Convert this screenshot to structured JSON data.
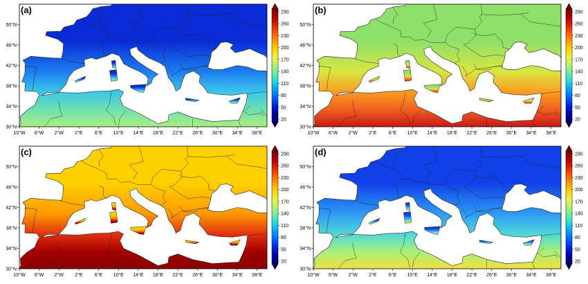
{
  "figure": {
    "x_ticks": [
      "10°W",
      "6°W",
      "2°W",
      "2°E",
      "6°E",
      "10°E",
      "14°E",
      "18°E",
      "22°E",
      "26°E",
      "30°E",
      "34°E",
      "38°E"
    ],
    "y_ticks": [
      "50°N",
      "46°N",
      "42°N",
      "38°N",
      "34°N",
      "30°N"
    ],
    "colorbar_ticks": [
      "290",
      "260",
      "230",
      "200",
      "170",
      "140",
      "110",
      "80",
      "50",
      "20"
    ],
    "colorbar_colors": [
      "#7a0000",
      "#b00000",
      "#e02000",
      "#ff5a00",
      "#ff9a00",
      "#ffd400",
      "#f0f040",
      "#b0f070",
      "#60f0a0",
      "#20d8e0",
      "#00a0ff",
      "#0060ff",
      "#0020e0",
      "#0000a0",
      "#00006a"
    ],
    "land_color": "#ffffff",
    "border_color": "#202020"
  },
  "panels": [
    {
      "label": "(a)",
      "field": "low",
      "colors": {
        "north": "#0a2ad6",
        "central": "#1d7cf0",
        "south_land": "#3cc8e8",
        "africa": "#70e0b0",
        "africa_south": "#a8f080"
      }
    },
    {
      "label": "(b)",
      "field": "medium",
      "colors": {
        "north": "#8ee06a",
        "central": "#d8e640",
        "south_land": "#ff9a20",
        "africa": "#f06020",
        "africa_south": "#c81818"
      }
    },
    {
      "label": "(c)",
      "field": "high",
      "colors": {
        "north": "#ffd000",
        "central": "#ff9a00",
        "south_land": "#e03010",
        "africa": "#a40000",
        "africa_south": "#8c0000"
      }
    },
    {
      "label": "(d)",
      "field": "low-moderate",
      "colors": {
        "north": "#1040e8",
        "central": "#2e9af5",
        "south_land": "#50d8d8",
        "africa": "#a8f07a",
        "africa_south": "#f0e040"
      }
    }
  ]
}
